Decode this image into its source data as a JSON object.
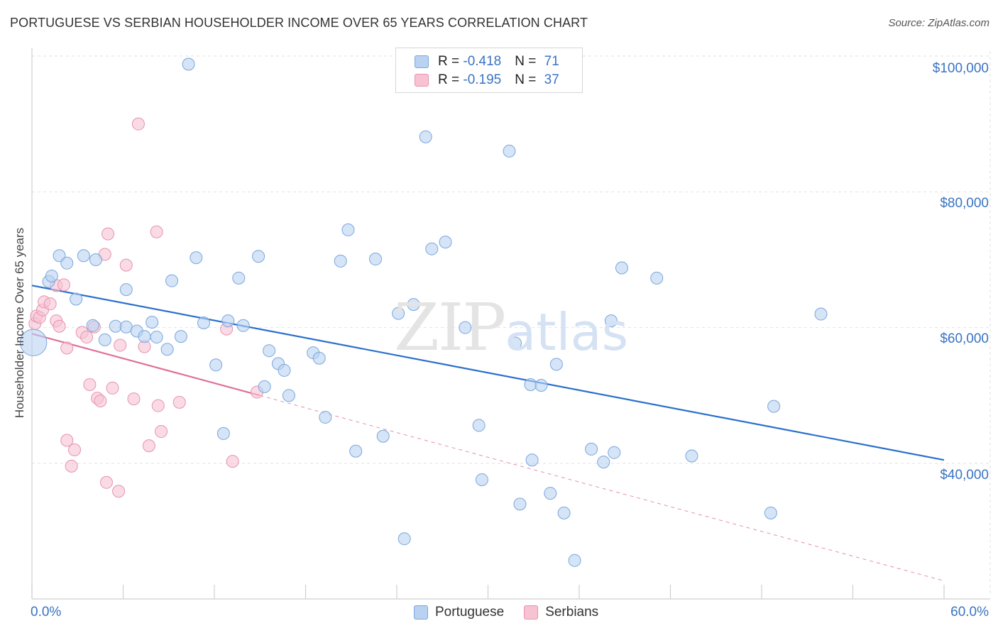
{
  "title": "PORTUGUESE VS SERBIAN HOUSEHOLDER INCOME OVER 65 YEARS CORRELATION CHART",
  "source": "Source: ZipAtlas.com",
  "watermark": {
    "zip": "ZIP",
    "atlas": "atlas"
  },
  "colors": {
    "portuguese_fill": "#b9d2f1",
    "portuguese_stroke": "#7aa7dc",
    "portuguese_line": "#2a6fcc",
    "serbian_fill": "#f7c3d3",
    "serbian_stroke": "#e693ad",
    "serbian_line": "#e0709a",
    "grid": "#e2e2e2",
    "tick_text": "#3a73c4"
  },
  "legend": {
    "rows": [
      {
        "r_label": "R = ",
        "r_value": "-0.418",
        "n_label": "N = ",
        "n_value": "71"
      },
      {
        "r_label": "R = ",
        "r_value": "-0.195",
        "n_label": "N = ",
        "n_value": "37"
      }
    ]
  },
  "bottom_legend": [
    "Portuguese",
    "Serbians"
  ],
  "chart_data": {
    "type": "scatter",
    "title": "PORTUGUESE VS SERBIAN HOUSEHOLDER INCOME OVER 65 YEARS CORRELATION CHART",
    "xlabel": "",
    "ylabel": "Householder Income Over 65 years",
    "xlim": [
      0,
      60
    ],
    "ylim": [
      20000,
      103000
    ],
    "x_tick_labels": [
      "0.0%",
      "60.0%"
    ],
    "y_ticks": [
      40000,
      60000,
      80000,
      100000
    ],
    "y_tick_labels": [
      "$40,000",
      "$60,000",
      "$80,000",
      "$100,000"
    ],
    "grid": true,
    "series": [
      {
        "name": "Portuguese",
        "R": -0.418,
        "N": 71,
        "trend": {
          "x0": 0,
          "y0": 66200,
          "x1": 60,
          "y1": 40500,
          "dashed_extension": false
        },
        "points": [
          [
            0.1,
            57800
          ],
          [
            1.1,
            66800
          ],
          [
            1.3,
            67600
          ],
          [
            1.8,
            70600
          ],
          [
            2.3,
            69500
          ],
          [
            2.9,
            64200
          ],
          [
            3.4,
            70600
          ],
          [
            4.2,
            70000
          ],
          [
            4.0,
            60300
          ],
          [
            4.8,
            58200
          ],
          [
            5.5,
            60200
          ],
          [
            6.2,
            60100
          ],
          [
            6.2,
            65600
          ],
          [
            6.9,
            59500
          ],
          [
            7.4,
            58700
          ],
          [
            7.9,
            60800
          ],
          [
            8.2,
            58600
          ],
          [
            8.9,
            56800
          ],
          [
            9.2,
            66900
          ],
          [
            9.8,
            58700
          ],
          [
            10.3,
            98800
          ],
          [
            10.8,
            70300
          ],
          [
            11.3,
            60700
          ],
          [
            12.1,
            54500
          ],
          [
            12.6,
            44400
          ],
          [
            12.9,
            61000
          ],
          [
            13.6,
            67300
          ],
          [
            13.9,
            60300
          ],
          [
            14.9,
            70500
          ],
          [
            15.3,
            51300
          ],
          [
            15.6,
            56600
          ],
          [
            16.2,
            54700
          ],
          [
            16.6,
            53700
          ],
          [
            16.9,
            50000
          ],
          [
            18.5,
            56300
          ],
          [
            18.9,
            55500
          ],
          [
            19.3,
            46800
          ],
          [
            20.3,
            69800
          ],
          [
            20.8,
            74400
          ],
          [
            21.3,
            41800
          ],
          [
            22.6,
            70100
          ],
          [
            23.1,
            44000
          ],
          [
            24.1,
            62100
          ],
          [
            24.5,
            28900
          ],
          [
            25.1,
            63400
          ],
          [
            25.9,
            88100
          ],
          [
            26.3,
            71600
          ],
          [
            27.2,
            72600
          ],
          [
            28.5,
            60000
          ],
          [
            29.4,
            45600
          ],
          [
            29.6,
            37600
          ],
          [
            31.4,
            86000
          ],
          [
            31.8,
            57700
          ],
          [
            32.1,
            34000
          ],
          [
            32.8,
            51600
          ],
          [
            32.9,
            40500
          ],
          [
            33.5,
            51500
          ],
          [
            34.1,
            35600
          ],
          [
            34.5,
            54600
          ],
          [
            35.0,
            32700
          ],
          [
            35.7,
            25700
          ],
          [
            36.8,
            42100
          ],
          [
            37.6,
            40200
          ],
          [
            38.1,
            61000
          ],
          [
            38.3,
            41600
          ],
          [
            38.8,
            68800
          ],
          [
            41.1,
            67300
          ],
          [
            43.4,
            41100
          ],
          [
            48.6,
            32700
          ],
          [
            48.8,
            48400
          ],
          [
            51.9,
            62000
          ]
        ],
        "point_radii": [
          22,
          10,
          10,
          10,
          10,
          10,
          10,
          10,
          10,
          10,
          10,
          10,
          10,
          10,
          10,
          10,
          10,
          10,
          10,
          10,
          10,
          10,
          10,
          10,
          10,
          10,
          10,
          10,
          10,
          10,
          10,
          10,
          10,
          10,
          10,
          10,
          10,
          10,
          10,
          10,
          10,
          10,
          10,
          10,
          10,
          10,
          10,
          10,
          10,
          10,
          10,
          10,
          10,
          10,
          10,
          10,
          10,
          10,
          10,
          10,
          10,
          10,
          10,
          10,
          10,
          10,
          10,
          10,
          10,
          10,
          10
        ]
      },
      {
        "name": "Serbians",
        "R": -0.195,
        "N": 37,
        "trend": {
          "x0": 0,
          "y0": 59100,
          "x1": 15,
          "y1": 50000,
          "dashed_extension": true,
          "x_end": 60,
          "y_end": 22700
        },
        "points": [
          [
            0.2,
            60600
          ],
          [
            0.3,
            61700
          ],
          [
            0.5,
            61500
          ],
          [
            0.7,
            62600
          ],
          [
            0.8,
            63800
          ],
          [
            1.2,
            63500
          ],
          [
            1.6,
            61000
          ],
          [
            1.6,
            66200
          ],
          [
            1.8,
            60200
          ],
          [
            2.1,
            66300
          ],
          [
            2.3,
            57000
          ],
          [
            2.3,
            43400
          ],
          [
            2.6,
            39600
          ],
          [
            2.8,
            42000
          ],
          [
            3.3,
            59300
          ],
          [
            3.6,
            58600
          ],
          [
            3.8,
            51600
          ],
          [
            4.1,
            60100
          ],
          [
            4.3,
            49600
          ],
          [
            4.5,
            49200
          ],
          [
            4.8,
            70800
          ],
          [
            4.9,
            37200
          ],
          [
            5.0,
            73800
          ],
          [
            5.3,
            51100
          ],
          [
            5.7,
            35900
          ],
          [
            5.8,
            57400
          ],
          [
            6.2,
            69200
          ],
          [
            6.7,
            49500
          ],
          [
            7.4,
            57200
          ],
          [
            7.7,
            42600
          ],
          [
            8.2,
            74100
          ],
          [
            8.3,
            48500
          ],
          [
            8.5,
            44700
          ],
          [
            9.7,
            49000
          ],
          [
            12.8,
            59800
          ],
          [
            13.2,
            40300
          ],
          [
            14.8,
            50500
          ]
        ],
        "extra_points": [
          [
            7.0,
            90000
          ]
        ]
      }
    ]
  }
}
